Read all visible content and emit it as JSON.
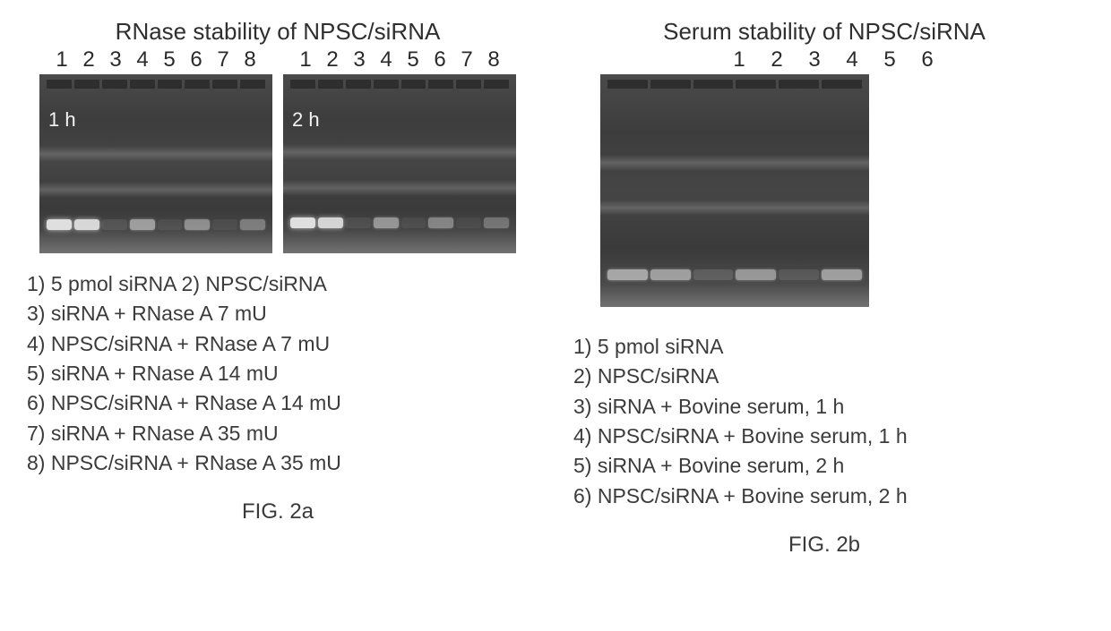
{
  "panel_a": {
    "title": "RNase stability of NPSC/siRNA",
    "lane_numbers": [
      "1",
      "2",
      "3",
      "4",
      "5",
      "6",
      "7",
      "8"
    ],
    "gels": [
      {
        "time_label": "1 h",
        "band_intensities": [
          0.95,
          0.9,
          0.1,
          0.55,
          0.08,
          0.45,
          0.06,
          0.35
        ],
        "smear_tops": [
          80,
          120
        ],
        "band_bottom": 162
      },
      {
        "time_label": "2 h",
        "band_intensities": [
          0.95,
          0.88,
          0.08,
          0.5,
          0.06,
          0.4,
          0.05,
          0.3
        ],
        "smear_tops": [
          78,
          118
        ],
        "band_bottom": 160
      }
    ],
    "legend_lines": [
      "1) 5 pmol siRNA    2) NPSC/siRNA",
      "3) siRNA + RNase A 7 mU",
      "4) NPSC/siRNA + RNase A 7 mU",
      "5) siRNA + RNase A 14 mU",
      "6) NPSC/siRNA + RNase A 14 mU",
      "7) siRNA + RNase A 35 mU",
      "8) NPSC/siRNA + RNase A 35 mU"
    ],
    "fig_label": "FIG. 2a"
  },
  "panel_b": {
    "title": "Serum stability of NPSC/siRNA",
    "lane_numbers": [
      "1",
      "2",
      "3",
      "4",
      "5",
      "6"
    ],
    "gel": {
      "band_intensities": [
        0.6,
        0.55,
        0.15,
        0.5,
        0.12,
        0.55
      ],
      "smear_tops": [
        90,
        140
      ],
      "band_bottom": 218
    },
    "legend_lines": [
      "1) 5 pmol siRNA",
      "2) NPSC/siRNA",
      "3) siRNA + Bovine serum, 1 h",
      "4) NPSC/siRNA + Bovine serum, 1 h",
      "5) siRNA + Bovine serum, 2 h",
      "6) NPSC/siRNA + Bovine serum, 2 h"
    ],
    "fig_label": "FIG. 2b"
  },
  "colors": {
    "band_bright": "#e8e8e8",
    "gel_dark": "#3e3e3e",
    "text": "#3a3a3a"
  }
}
